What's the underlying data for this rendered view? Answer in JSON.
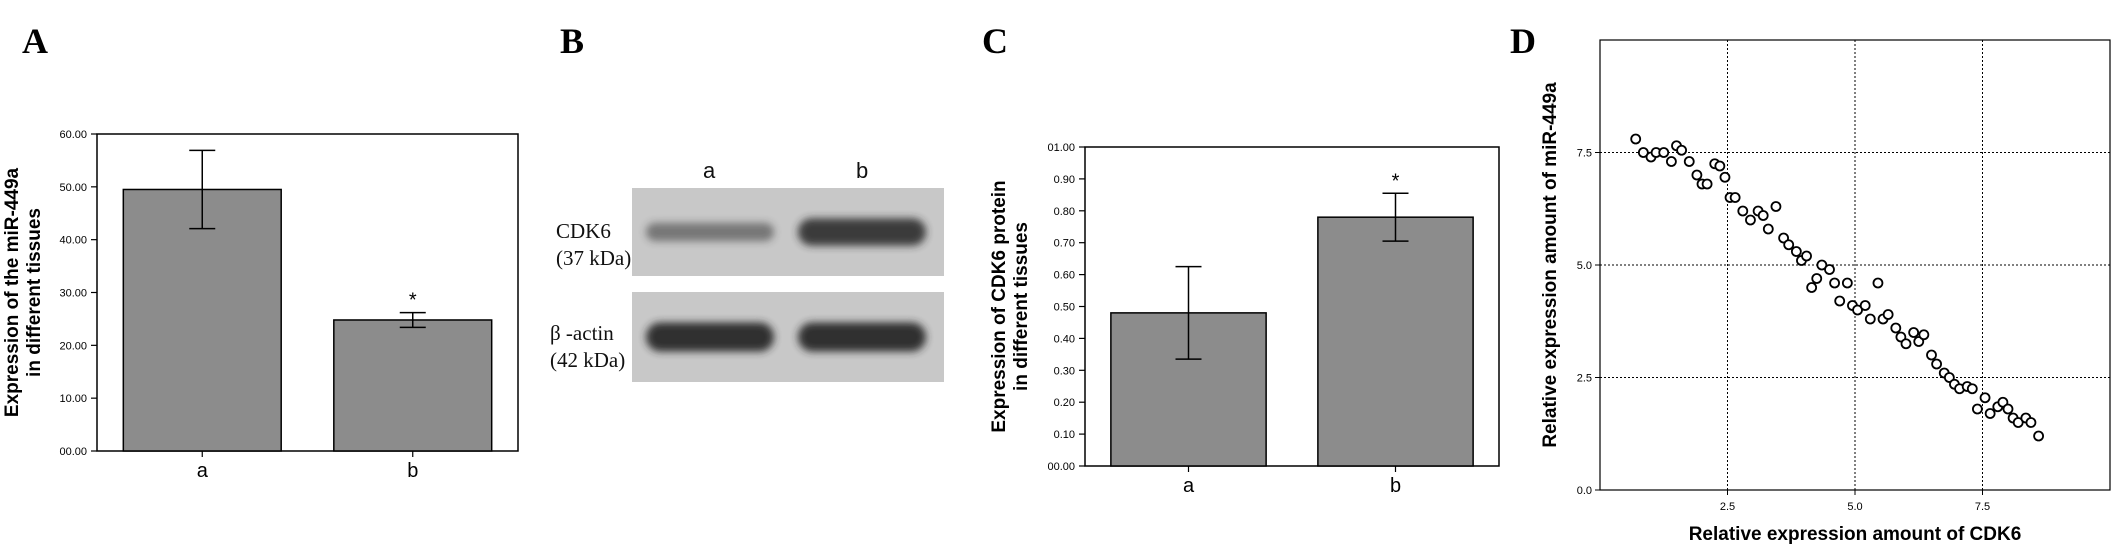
{
  "panels": {
    "A": "A",
    "B": "B",
    "C": "C",
    "D": "D"
  },
  "blot": {
    "lanes": [
      "a",
      "b"
    ],
    "rows": [
      {
        "name": "CDK6",
        "sub": "(37 kDa)",
        "band_intensity": [
          0.35,
          0.85
        ]
      },
      {
        "name": "β -actin",
        "sub": "(42 kDa)",
        "band_intensity": [
          0.95,
          0.95
        ]
      }
    ],
    "colors": {
      "membrane": "#c8c8c8",
      "band": "#2a2a2a"
    }
  },
  "chart_data": [
    {
      "type": "bar",
      "id": "A",
      "categories": [
        "a",
        "b"
      ],
      "values": [
        49.5,
        24.8
      ],
      "errors": [
        7.4,
        1.4
      ],
      "significance": [
        "",
        "*"
      ],
      "ylabel_lines": [
        "Expression of the miR-449a",
        "in different tissues"
      ],
      "xlabel": "",
      "ylim": [
        0,
        60
      ],
      "yticks": [
        0,
        10,
        20,
        30,
        40,
        50,
        60
      ],
      "ytick_labels": [
        "00.00",
        "10.00",
        "20.00",
        "30.00",
        "40.00",
        "50.00",
        "60.00"
      ],
      "bar_color": "#8c8c8c",
      "grid": false
    },
    {
      "type": "bar",
      "id": "C",
      "categories": [
        "a",
        "b"
      ],
      "values": [
        0.48,
        0.78
      ],
      "errors": [
        0.145,
        0.075
      ],
      "significance": [
        "",
        "*"
      ],
      "ylabel_lines": [
        "Expression of CDK6 protein",
        "in different tissues"
      ],
      "xlabel": "",
      "ylim": [
        0,
        1.0
      ],
      "yticks": [
        0,
        0.1,
        0.2,
        0.3,
        0.4,
        0.5,
        0.6,
        0.7,
        0.8,
        0.9,
        1.0
      ],
      "ytick_labels": [
        "00.00",
        "0.10",
        "0.20",
        "0.30",
        "0.40",
        "0.50",
        "0.60",
        "0.70",
        "0.80",
        "0.90",
        "01.00"
      ],
      "bar_color": "#8c8c8c",
      "grid": false
    },
    {
      "type": "scatter",
      "id": "D",
      "xlabel": "Relative expression amount of CDK6",
      "ylabel": "Relative expression amount of miR-449a",
      "xlim": [
        0,
        10
      ],
      "ylim": [
        0,
        10
      ],
      "xticks": [
        2.5,
        5.0,
        7.5
      ],
      "xtick_labels": [
        "2.5",
        "5.0",
        "7.5"
      ],
      "yticks": [
        0,
        2.5,
        5.0,
        7.5
      ],
      "ytick_labels": [
        "0.0",
        "2.5",
        "5.0",
        "7.5"
      ],
      "grid": true,
      "marker": "open-circle",
      "x": [
        0.7,
        0.85,
        1.0,
        1.1,
        1.25,
        1.4,
        1.5,
        1.6,
        1.75,
        1.9,
        2.0,
        2.1,
        2.25,
        2.35,
        2.45,
        2.55,
        2.65,
        2.8,
        2.95,
        3.1,
        3.2,
        3.3,
        3.45,
        3.6,
        3.7,
        3.85,
        3.95,
        4.05,
        4.15,
        4.25,
        4.35,
        4.5,
        4.6,
        4.7,
        4.85,
        4.95,
        5.05,
        5.2,
        5.3,
        5.45,
        5.55,
        5.65,
        5.8,
        5.9,
        6.0,
        6.15,
        6.25,
        6.35,
        6.5,
        6.6,
        6.75,
        6.85,
        6.95,
        7.05,
        7.2,
        7.3,
        7.4,
        7.55,
        7.65,
        7.8,
        7.9,
        8.0,
        8.1,
        8.2,
        8.35,
        8.45,
        8.6
      ],
      "y": [
        7.8,
        7.5,
        7.4,
        7.5,
        7.5,
        7.3,
        7.65,
        7.55,
        7.3,
        7.0,
        6.8,
        6.8,
        7.25,
        7.2,
        6.95,
        6.5,
        6.5,
        6.2,
        6.0,
        6.2,
        6.1,
        5.8,
        6.3,
        5.6,
        5.45,
        5.3,
        5.1,
        5.2,
        4.5,
        4.7,
        5.0,
        4.9,
        4.6,
        4.2,
        4.6,
        4.1,
        4.0,
        4.1,
        3.8,
        4.6,
        3.8,
        3.9,
        3.6,
        3.4,
        3.25,
        3.5,
        3.3,
        3.45,
        3.0,
        2.8,
        2.6,
        2.5,
        2.35,
        2.25,
        2.3,
        2.25,
        1.8,
        2.05,
        1.7,
        1.85,
        1.95,
        1.8,
        1.6,
        1.5,
        1.6,
        1.5,
        1.2
      ]
    }
  ]
}
